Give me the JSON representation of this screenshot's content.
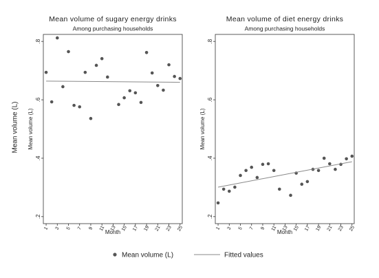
{
  "ylabel": "Mean volume (L)",
  "chart_data": [
    {
      "type": "scatter",
      "title": "Mean volume of sugary energy drinks",
      "subtitle": "Among purchasing households",
      "xlabel": "Month",
      "ylabel": "Mean volume (L)",
      "xlim": [
        0.5,
        25.4
      ],
      "xticks": [
        1,
        3,
        5,
        7,
        9,
        11,
        13,
        15,
        17,
        19,
        21,
        23,
        25
      ],
      "ylim": [
        0.176,
        0.824
      ],
      "yticks": [
        {
          "value": 0.2,
          "label": ".2"
        },
        {
          "value": 0.4,
          "label": ".4"
        },
        {
          "value": 0.6,
          "label": ".6"
        },
        {
          "value": 0.8,
          "label": ".8"
        }
      ],
      "series": [
        {
          "name": "Mean volume (L)",
          "color": "#555555",
          "kind": "points",
          "x": [
            1,
            2,
            3,
            4,
            5,
            6,
            7,
            8,
            9,
            10,
            11,
            12,
            14,
            15,
            16,
            17,
            18,
            19,
            20,
            21,
            22,
            23,
            24,
            25
          ],
          "values": [
            0.694,
            0.593,
            0.812,
            0.645,
            0.765,
            0.581,
            0.576,
            0.694,
            0.536,
            0.718,
            0.741,
            0.678,
            0.584,
            0.607,
            0.631,
            0.624,
            0.591,
            0.762,
            0.692,
            0.649,
            0.633,
            0.72,
            0.68,
            0.673
          ]
        },
        {
          "name": "Fitted values",
          "color": "#888888",
          "kind": "line",
          "x": [
            1,
            25
          ],
          "values": [
            0.664,
            0.66
          ]
        }
      ]
    },
    {
      "type": "scatter",
      "title": "Mean volume of diet energy drinks",
      "subtitle": "Among purchasing households",
      "xlabel": "Month",
      "ylabel": "Mean volume (L)",
      "xlim": [
        0.5,
        25.4
      ],
      "xticks": [
        1,
        3,
        5,
        7,
        9,
        11,
        13,
        15,
        17,
        19,
        21,
        23,
        25
      ],
      "ylim": [
        0.176,
        0.824
      ],
      "yticks": [
        {
          "value": 0.2,
          "label": ".2"
        },
        {
          "value": 0.4,
          "label": ".4"
        },
        {
          "value": 0.6,
          "label": ".6"
        },
        {
          "value": 0.8,
          "label": ".8"
        }
      ],
      "series": [
        {
          "name": "Mean volume (L)",
          "color": "#555555",
          "kind": "points",
          "x": [
            1,
            2,
            3,
            4,
            5,
            6,
            7,
            8,
            9,
            10,
            11,
            12,
            14,
            15,
            16,
            17,
            18,
            19,
            20,
            21,
            22,
            23,
            24,
            25
          ],
          "values": [
            0.247,
            0.294,
            0.287,
            0.301,
            0.341,
            0.358,
            0.369,
            0.334,
            0.379,
            0.381,
            0.358,
            0.294,
            0.273,
            0.349,
            0.311,
            0.32,
            0.362,
            0.358,
            0.4,
            0.381,
            0.362,
            0.379,
            0.398,
            0.407
          ]
        },
        {
          "name": "Fitted values",
          "color": "#888888",
          "kind": "line",
          "x": [
            1,
            25
          ],
          "values": [
            0.301,
            0.388
          ]
        }
      ]
    }
  ]
}
